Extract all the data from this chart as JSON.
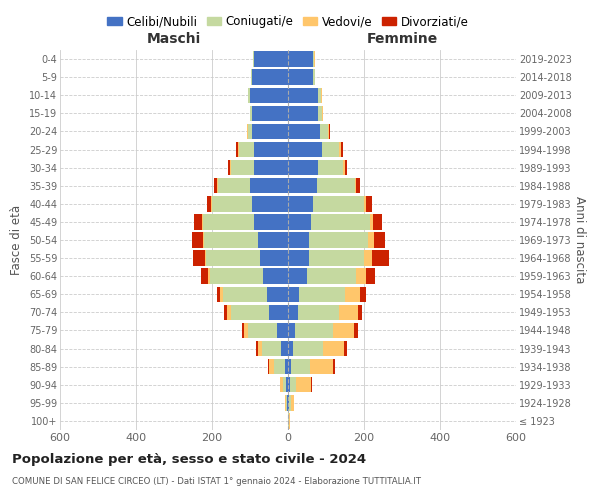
{
  "age_groups": [
    "100+",
    "95-99",
    "90-94",
    "85-89",
    "80-84",
    "75-79",
    "70-74",
    "65-69",
    "60-64",
    "55-59",
    "50-54",
    "45-49",
    "40-44",
    "35-39",
    "30-34",
    "25-29",
    "20-24",
    "15-19",
    "10-14",
    "5-9",
    "0-4"
  ],
  "birth_years": [
    "≤ 1923",
    "1924-1928",
    "1929-1933",
    "1934-1938",
    "1939-1943",
    "1944-1948",
    "1949-1953",
    "1954-1958",
    "1959-1963",
    "1964-1968",
    "1969-1973",
    "1974-1978",
    "1979-1983",
    "1984-1988",
    "1989-1993",
    "1994-1998",
    "1999-2003",
    "2004-2008",
    "2009-2013",
    "2014-2018",
    "2019-2023"
  ],
  "maschi": {
    "celibi": [
      0,
      2,
      5,
      8,
      18,
      30,
      50,
      55,
      65,
      75,
      80,
      90,
      95,
      100,
      90,
      90,
      95,
      95,
      100,
      95,
      90
    ],
    "coniugati": [
      1,
      3,
      8,
      30,
      50,
      75,
      100,
      115,
      140,
      140,
      140,
      135,
      105,
      85,
      60,
      40,
      10,
      5,
      5,
      3,
      2
    ],
    "vedovi": [
      0,
      2,
      8,
      12,
      12,
      10,
      10,
      8,
      5,
      4,
      3,
      2,
      2,
      2,
      2,
      2,
      2,
      0,
      0,
      0,
      0
    ],
    "divorziati": [
      0,
      0,
      0,
      3,
      5,
      5,
      8,
      8,
      20,
      30,
      30,
      20,
      10,
      8,
      5,
      5,
      2,
      0,
      0,
      0,
      0
    ]
  },
  "femmine": {
    "nubili": [
      0,
      2,
      5,
      8,
      12,
      18,
      25,
      30,
      50,
      55,
      55,
      60,
      65,
      75,
      80,
      90,
      85,
      80,
      80,
      65,
      65
    ],
    "coniugate": [
      2,
      5,
      15,
      50,
      80,
      100,
      110,
      120,
      130,
      145,
      155,
      155,
      135,
      100,
      65,
      45,
      20,
      10,
      8,
      5,
      3
    ],
    "vedove": [
      2,
      10,
      40,
      60,
      55,
      55,
      50,
      40,
      25,
      20,
      15,
      8,
      5,
      5,
      5,
      5,
      3,
      2,
      2,
      2,
      2
    ],
    "divorziate": [
      0,
      0,
      2,
      5,
      8,
      10,
      10,
      15,
      25,
      45,
      30,
      25,
      15,
      10,
      5,
      5,
      2,
      0,
      0,
      0,
      0
    ]
  },
  "colors": {
    "celibi": "#4472c4",
    "coniugati": "#c5d9a0",
    "vedovi": "#ffc66b",
    "divorziati": "#cc2200"
  },
  "title": "Popolazione per età, sesso e stato civile - 2024",
  "subtitle": "COMUNE DI SAN FELICE CIRCEO (LT) - Dati ISTAT 1° gennaio 2024 - Elaborazione TUTTITALIA.IT",
  "xlabel_left": "Maschi",
  "xlabel_right": "Femmine",
  "ylabel_left": "Fasce di età",
  "ylabel_right": "Anni di nascita",
  "xlim": 600,
  "legend_labels": [
    "Celibi/Nubili",
    "Coniugati/e",
    "Vedovi/e",
    "Divorziati/e"
  ],
  "bg_color": "#ffffff",
  "grid_color": "#cccccc"
}
